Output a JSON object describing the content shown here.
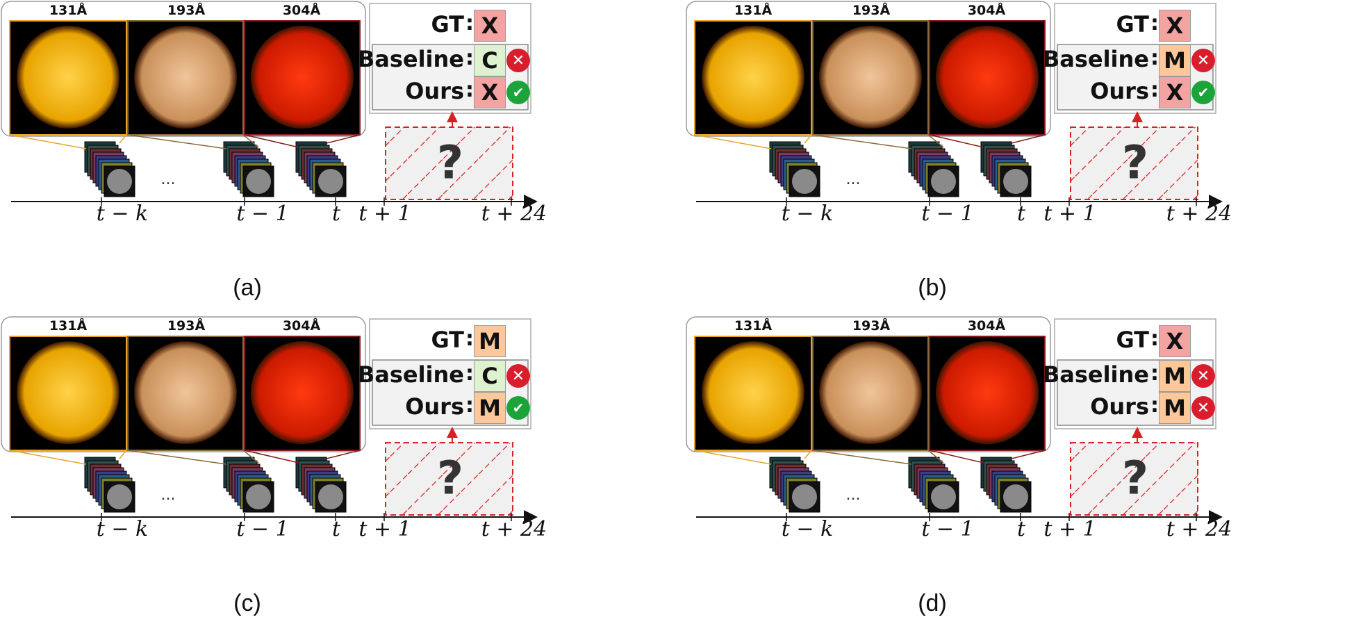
{
  "colors": {
    "X": "#f4a3a3",
    "M": "#fcc89b",
    "C": "#dff2cf",
    "correct": "#1ba43a",
    "wrong": "#d81e2c",
    "accent_red": "#d62222",
    "orange_frame": "#e8a52a",
    "sun131": "#e8a400",
    "sun193": "#c9905a",
    "sun304": "#cc1a00"
  },
  "icons": {
    "correct": "check-circle-icon",
    "wrong": "x-circle-icon"
  },
  "wavelengths": [
    "131Å",
    "193Å",
    "304Å"
  ],
  "labels": {
    "gt": "GT",
    "baseline": "Baseline",
    "ours": "Ours",
    "question": "?",
    "ellipsis": "..."
  },
  "timeline": {
    "t_minus_k": "t − k",
    "t_minus_1": "t − 1",
    "t": "t",
    "t_plus_1": "t + 1",
    "t_plus_24": "t + 24"
  },
  "panels": [
    {
      "caption": "(a)",
      "gt": "X",
      "baseline": "C",
      "baseline_correct": false,
      "ours": "X",
      "ours_correct": true
    },
    {
      "caption": "(b)",
      "gt": "X",
      "baseline": "M",
      "baseline_correct": false,
      "ours": "X",
      "ours_correct": true
    },
    {
      "caption": "(c)",
      "gt": "M",
      "baseline": "C",
      "baseline_correct": false,
      "ours": "M",
      "ours_correct": true
    },
    {
      "caption": "(d)",
      "gt": "X",
      "baseline": "M",
      "baseline_correct": false,
      "ours": "M",
      "ours_correct": false
    }
  ]
}
